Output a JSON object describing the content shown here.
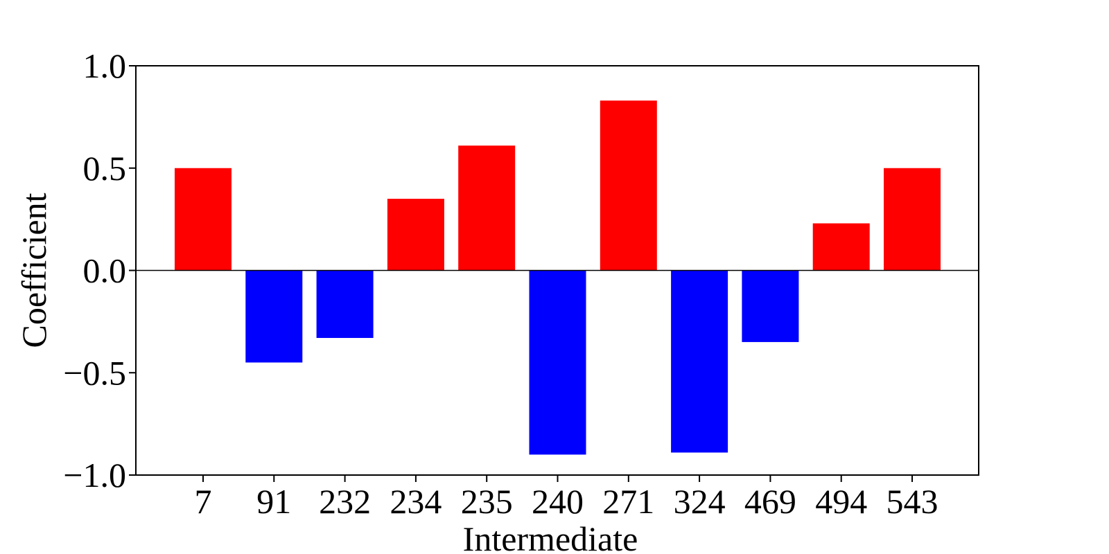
{
  "chart_data": {
    "type": "bar",
    "categories": [
      "7",
      "91",
      "232",
      "234",
      "235",
      "240",
      "271",
      "324",
      "469",
      "494",
      "543"
    ],
    "values": [
      0.5,
      -0.45,
      -0.33,
      0.35,
      0.61,
      -0.9,
      0.83,
      -0.89,
      -0.35,
      0.23,
      0.5
    ],
    "xlabel": "Intermediate",
    "ylabel": "Coefficient",
    "ylim": [
      -1.0,
      1.0
    ],
    "yticks": [
      "−1.0",
      "−0.5",
      "0.0",
      "0.5",
      "1.0"
    ],
    "ytick_values": [
      -1.0,
      -0.5,
      0.0,
      0.5,
      1.0
    ],
    "grid": false,
    "colors": {
      "positive": "#ff0000",
      "negative": "#0000ff",
      "zero_line": "#000000"
    }
  }
}
